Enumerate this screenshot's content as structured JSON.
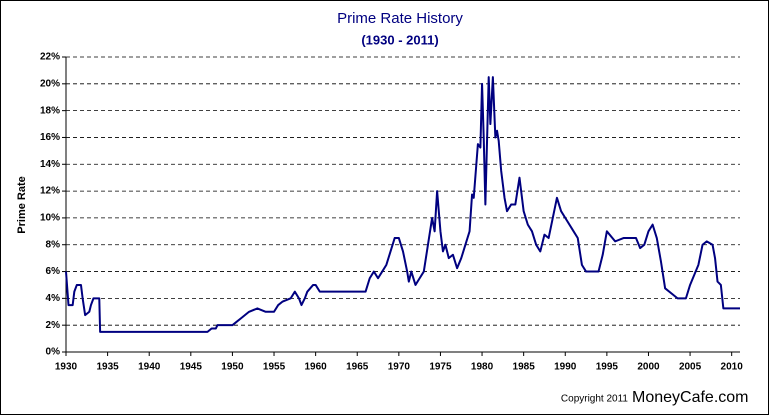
{
  "chart_data": {
    "type": "line",
    "title": "Prime Rate History",
    "subtitle": "(1930 - 2011)",
    "y_label": "Prime Rate",
    "credit_prefix": "Copyright 2011",
    "credit_site": "MoneyCafe.com",
    "xlim": [
      1930,
      2011
    ],
    "xticks": [
      1930,
      1935,
      1940,
      1945,
      1950,
      1955,
      1960,
      1965,
      1970,
      1975,
      1980,
      1985,
      1990,
      1995,
      2000,
      2005,
      2010
    ],
    "ylim": [
      0,
      22
    ],
    "yticks": [
      {
        "value": 0,
        "label": "0%"
      },
      {
        "value": 2,
        "label": "2%"
      },
      {
        "value": 4,
        "label": "4%"
      },
      {
        "value": 6,
        "label": "6%"
      },
      {
        "value": 8,
        "label": "8%"
      },
      {
        "value": 10,
        "label": "10%"
      },
      {
        "value": 12,
        "label": "12%"
      },
      {
        "value": 14,
        "label": "14%"
      },
      {
        "value": 16,
        "label": "16%"
      },
      {
        "value": 18,
        "label": "18%"
      },
      {
        "value": 20,
        "label": "20%"
      },
      {
        "value": 22,
        "label": "22%"
      }
    ],
    "grid": true,
    "series": [
      {
        "color": "#000080",
        "x": [
          1930,
          1930.3,
          1930.8,
          1931,
          1931.3,
          1931.8,
          1932,
          1932.3,
          1932.8,
          1933,
          1933.3,
          1934,
          1934.1,
          1947,
          1947.5,
          1948,
          1948.2,
          1950,
          1950.5,
          1951,
          1951.5,
          1952,
          1953,
          1954,
          1955,
          1955.5,
          1956,
          1957,
          1957.5,
          1958,
          1958.3,
          1958.7,
          1959,
          1959.7,
          1960,
          1960.5,
          1966,
          1966.5,
          1967,
          1967.5,
          1968,
          1968.5,
          1969,
          1969.5,
          1970,
          1970.5,
          1971,
          1971.2,
          1971.5,
          1972,
          1972.5,
          1973,
          1973.5,
          1974,
          1974.3,
          1974.6,
          1975,
          1975.3,
          1975.6,
          1976,
          1976.5,
          1977,
          1977.5,
          1978,
          1978.5,
          1978.8,
          1979,
          1979.5,
          1979.8,
          1980,
          1980.2,
          1980.4,
          1980.8,
          1981,
          1981.3,
          1981.6,
          1981.8,
          1982,
          1982.3,
          1982.7,
          1983,
          1983.5,
          1984,
          1984.5,
          1985,
          1985.5,
          1986,
          1986.5,
          1987,
          1987.5,
          1988,
          1988.5,
          1989,
          1989.5,
          1990,
          1991,
          1991.5,
          1992,
          1992.5,
          1994,
          1994.5,
          1995,
          1996,
          1997,
          1998.5,
          1999,
          1999.5,
          2000,
          2000.5,
          2001,
          2001.5,
          2002,
          2003,
          2003.5,
          2004.5,
          2005,
          2006,
          2006.5,
          2007,
          2007.7,
          2008,
          2008.3,
          2008.7,
          2009,
          2011
        ],
        "values": [
          6,
          3.5,
          3.5,
          4.5,
          5,
          5,
          4,
          2.75,
          3,
          3.5,
          4,
          4,
          1.5,
          1.5,
          1.75,
          1.75,
          2,
          2,
          2.25,
          2.5,
          2.75,
          3,
          3.25,
          3,
          3,
          3.5,
          3.75,
          4,
          4.5,
          4,
          3.5,
          4,
          4.5,
          5,
          5,
          4.5,
          4.5,
          5.5,
          6,
          5.5,
          6,
          6.5,
          7.5,
          8.5,
          8.5,
          7.5,
          6,
          5.25,
          6,
          5,
          5.5,
          6,
          8,
          10,
          9,
          12,
          9,
          7.5,
          8,
          7,
          7.25,
          6.25,
          7,
          8,
          9,
          11.75,
          11.5,
          15.5,
          15.25,
          20,
          16,
          11,
          20.5,
          17,
          20.5,
          16,
          16.5,
          15.75,
          13.5,
          11.5,
          10.5,
          11,
          11,
          13,
          10.5,
          9.5,
          9,
          8,
          7.5,
          8.75,
          8.5,
          10,
          11.5,
          10.5,
          10,
          9,
          8.5,
          6.5,
          6,
          6,
          7.25,
          9,
          8.25,
          8.5,
          8.5,
          7.75,
          8,
          9,
          9.5,
          8.5,
          6.75,
          4.75,
          4.25,
          4,
          4,
          5,
          6.5,
          8,
          8.25,
          8,
          7,
          5.25,
          5,
          3.25,
          3.25
        ]
      }
    ]
  }
}
